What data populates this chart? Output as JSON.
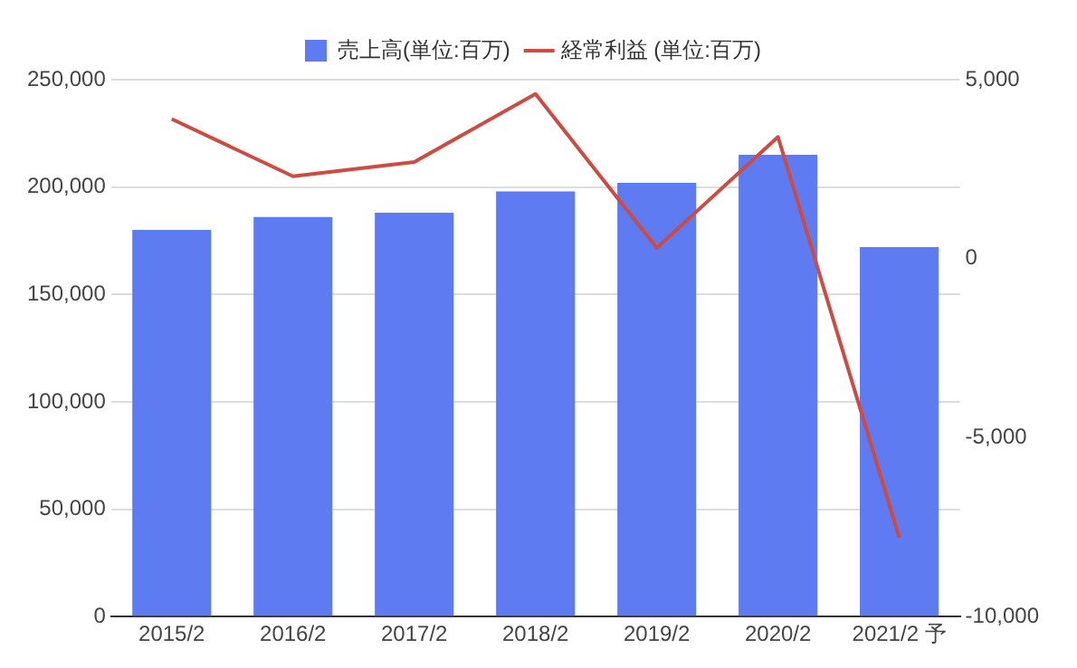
{
  "chart_data": {
    "type": "bar",
    "categories": [
      "2015/2",
      "2016/2",
      "2017/2",
      "2018/2",
      "2019/2",
      "2020/2",
      "2021/2 予"
    ],
    "series": [
      {
        "name": "売上高(単位:百万)",
        "color": "#5e7bf1",
        "values": [
          180000,
          186000,
          188000,
          198000,
          202000,
          215000,
          172000
        ]
      },
      {
        "name": "経常利益 (単位:百万)",
        "color": "#cc4b42",
        "type": "line",
        "axis": "y2",
        "values": [
          3900,
          2300,
          2700,
          4600,
          300,
          3400,
          -7800
        ]
      }
    ],
    "ylim": [
      0,
      250000
    ],
    "yticks": [
      0,
      {
        "value": 50000,
        "label": "50,000"
      },
      {
        "value": 100000,
        "label": "100,000"
      },
      {
        "value": 150000,
        "label": "150,000"
      },
      {
        "value": 200000,
        "label": "200,000"
      },
      {
        "value": 250000,
        "label": "250,000"
      }
    ],
    "y2lim": [
      -10000,
      5000
    ],
    "y2ticks": [
      {
        "value": -10000,
        "label": "-10,000"
      },
      {
        "value": -5000,
        "label": "-5,000"
      },
      0,
      {
        "value": 5000,
        "label": "5,000"
      }
    ],
    "grid": "y",
    "legend": "top",
    "marker": "none",
    "line_style": "solid"
  }
}
